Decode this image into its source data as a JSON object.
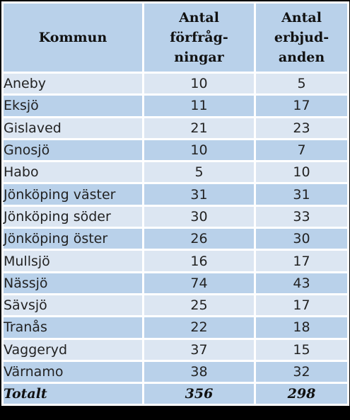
{
  "table": {
    "headers": {
      "kommun": "Kommun",
      "forfragningar": [
        "Antal",
        "förfråg-",
        "ningar"
      ],
      "erbjudanden": [
        "Antal",
        "erbjud-",
        "anden"
      ]
    },
    "rows": [
      {
        "kommun": "Aneby",
        "forfragningar": "10",
        "erbjudanden": "5"
      },
      {
        "kommun": "Eksjö",
        "forfragningar": "11",
        "erbjudanden": "17"
      },
      {
        "kommun": "Gislaved",
        "forfragningar": "21",
        "erbjudanden": "23"
      },
      {
        "kommun": "Gnosjö",
        "forfragningar": "10",
        "erbjudanden": "7"
      },
      {
        "kommun": "Habo",
        "forfragningar": "5",
        "erbjudanden": "10"
      },
      {
        "kommun": "Jönköping väster",
        "forfragningar": "31",
        "erbjudanden": "31"
      },
      {
        "kommun": "Jönköping söder",
        "forfragningar": "30",
        "erbjudanden": "33"
      },
      {
        "kommun": "Jönköping öster",
        "forfragningar": "26",
        "erbjudanden": "30"
      },
      {
        "kommun": "Mullsjö",
        "forfragningar": "16",
        "erbjudanden": "17"
      },
      {
        "kommun": "Nässjö",
        "forfragningar": "74",
        "erbjudanden": "43"
      },
      {
        "kommun": "Sävsjö",
        "forfragningar": "25",
        "erbjudanden": "17"
      },
      {
        "kommun": "Tranås",
        "forfragningar": "22",
        "erbjudanden": "18"
      },
      {
        "kommun": "Vaggeryd",
        "forfragningar": "37",
        "erbjudanden": "15"
      },
      {
        "kommun": "Värnamo",
        "forfragningar": "38",
        "erbjudanden": "32"
      }
    ],
    "total": {
      "label": "Totalt",
      "forfragningar": "356",
      "erbjudanden": "298"
    },
    "colors": {
      "header": "#b9d1ea",
      "row_light": "#dce6f2",
      "row_dark": "#b9d1ea",
      "border": "#000000"
    }
  }
}
